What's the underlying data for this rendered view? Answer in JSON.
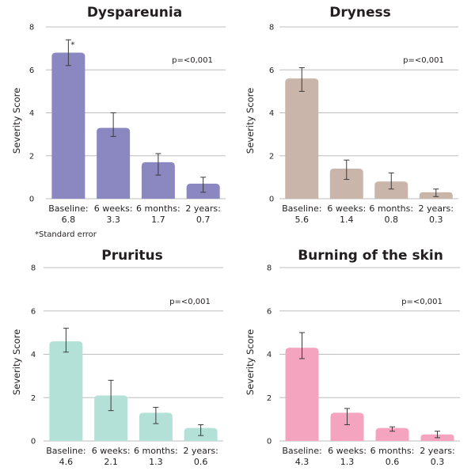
{
  "chart_data": [
    {
      "type": "bar",
      "title": "Dyspareunia",
      "xlabel": "",
      "ylabel": "Severity Score",
      "ylim": [
        0,
        8
      ],
      "yticks": [
        "0",
        "2",
        "4",
        "6",
        "8"
      ],
      "grid": true,
      "color": "#8b87c1",
      "categories": [
        "Baseline:",
        "6 weeks:",
        "6 months:",
        "2 years:"
      ],
      "value_labels": [
        "6.8",
        "3.3",
        "1.7",
        "0.7"
      ],
      "values": [
        6.8,
        3.3,
        1.7,
        0.7
      ],
      "error_low": [
        6.2,
        2.9,
        1.1,
        0.3
      ],
      "error_high": [
        7.4,
        4.0,
        2.1,
        1.0
      ],
      "error_bar_note_on_first": "*",
      "annotation": "p=<0,001",
      "footnote": "*Standard error"
    },
    {
      "type": "bar",
      "title": "Dryness",
      "xlabel": "",
      "ylabel": "Severity Score",
      "ylim": [
        0,
        8
      ],
      "yticks": [
        "0",
        "2",
        "4",
        "6",
        "8"
      ],
      "grid": true,
      "color": "#c9b5aa",
      "categories": [
        "Baseline:",
        "6 weeks:",
        "6 months:",
        "2 years:"
      ],
      "value_labels": [
        "5.6",
        "1.4",
        "0.8",
        "0.3"
      ],
      "values": [
        5.6,
        1.4,
        0.8,
        0.3
      ],
      "error_low": [
        5.0,
        0.9,
        0.45,
        0.1
      ],
      "error_high": [
        6.1,
        1.8,
        1.2,
        0.45
      ],
      "annotation": "p=<0,001"
    },
    {
      "type": "bar",
      "title": "Pruritus",
      "xlabel": "",
      "ylabel": "Severity Score",
      "ylim": [
        0,
        8
      ],
      "yticks": [
        "0",
        "2",
        "4",
        "6",
        "8"
      ],
      "grid": true,
      "color": "#b4e1d7",
      "categories": [
        "Baseline:",
        "6 weeks:",
        "6 months:",
        "2 years:"
      ],
      "value_labels": [
        "4.6",
        "2.1",
        "1.3",
        "0.6"
      ],
      "values": [
        4.6,
        2.1,
        1.3,
        0.6
      ],
      "error_low": [
        4.1,
        1.4,
        0.8,
        0.25
      ],
      "error_high": [
        5.2,
        2.8,
        1.55,
        0.75
      ],
      "annotation": "p=<0,001"
    },
    {
      "type": "bar",
      "title": "Burning of the skin",
      "xlabel": "",
      "ylabel": "Severity Score",
      "ylim": [
        0,
        8
      ],
      "yticks": [
        "0",
        "2",
        "4",
        "6",
        "8"
      ],
      "grid": true,
      "color": "#f4a4be",
      "categories": [
        "Baseline:",
        "6 weeks:",
        "6 months:",
        "2 years:"
      ],
      "value_labels": [
        "4.3",
        "1.3",
        "0.6",
        "0.3"
      ],
      "values": [
        4.3,
        1.3,
        0.6,
        0.3
      ],
      "error_low": [
        3.8,
        0.75,
        0.45,
        0.15
      ],
      "error_high": [
        5.0,
        1.5,
        0.65,
        0.45
      ],
      "annotation": "p=<0,001"
    }
  ]
}
